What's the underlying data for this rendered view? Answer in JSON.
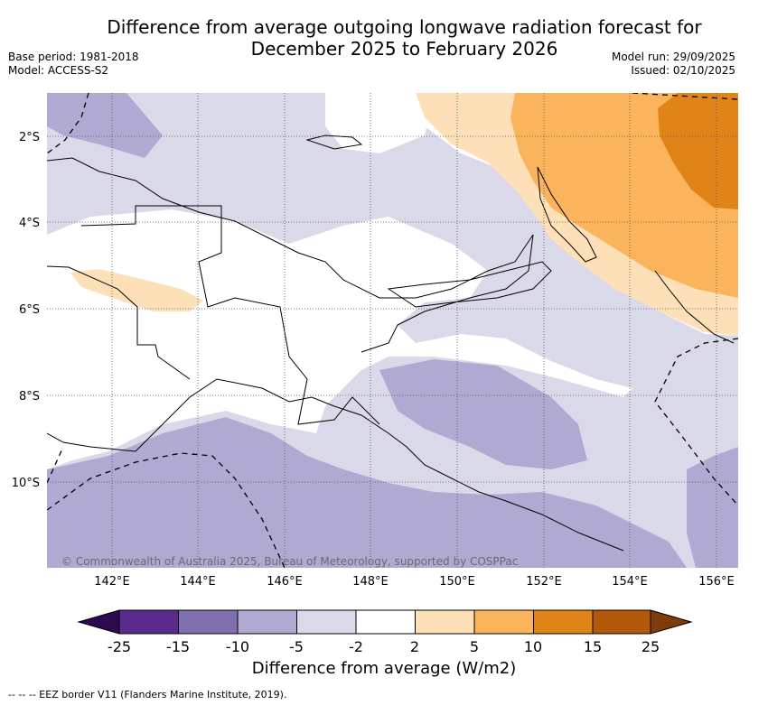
{
  "title": {
    "line1": "Difference from average outgoing longwave radiation forecast for",
    "line2": "December 2025 to February 2026"
  },
  "meta": {
    "base_period": "Base period: 1981-2018",
    "model": "Model: ACCESS-S2",
    "model_run": "Model run: 29/09/2025",
    "issued": "Issued: 02/10/2025"
  },
  "map": {
    "lon_labels": [
      "142°E",
      "144°E",
      "146°E",
      "148°E",
      "150°E",
      "152°E",
      "154°E",
      "156°E"
    ],
    "lat_labels": [
      "2°S",
      "4°S",
      "6°S",
      "8°S",
      "10°S"
    ],
    "copyright": "© Commonwealth of Australia 2025, Bureau of Meteorology, supported by COSPPac"
  },
  "colorbar": {
    "ticks": [
      "-25",
      "-15",
      "-10",
      "-5",
      "-2",
      "2",
      "5",
      "10",
      "15",
      "25"
    ],
    "colors": {
      "below_-25": "#2e0a4f",
      "-25_-15": "#5a2a8c",
      "-15_-10": "#8070b0",
      "-10_-5": "#b0aad2",
      "-5_-2": "#d9d9ea",
      "-2_2": "#ffffff",
      "2_5": "#fde0b7",
      "5_10": "#fbb45c",
      "10_15": "#e08417",
      "15_25": "#b35808",
      "above_25": "#7f3b08"
    },
    "title": "Difference from average (W/m2)"
  },
  "footnote": "--  --  -- EEZ border V11 (Flanders Marine Institute, 2019)."
}
